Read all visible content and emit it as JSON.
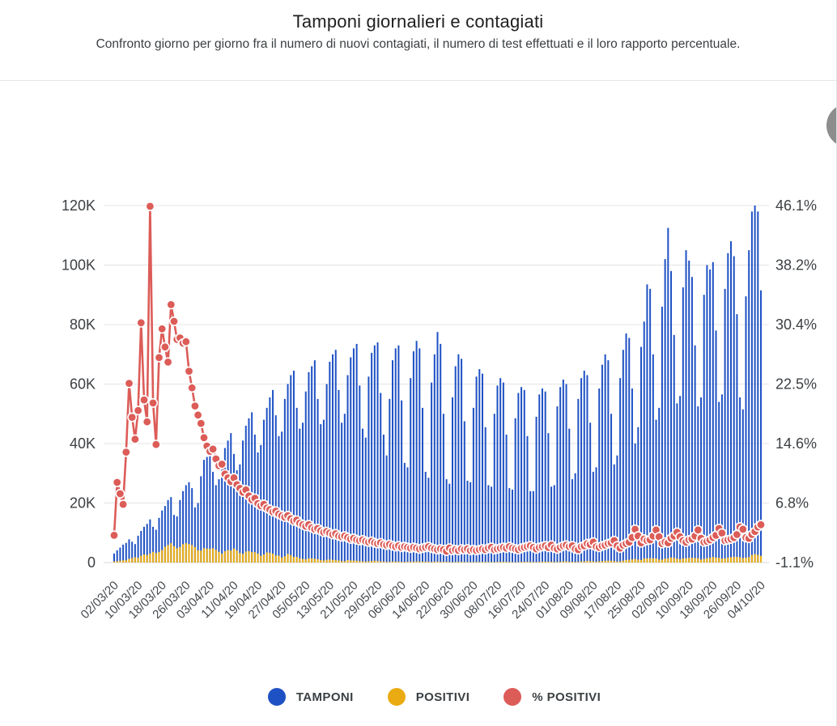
{
  "header": {
    "title": "Tamponi giornalieri e contagiati",
    "subtitle": "Confronto giorno per giorno fra il numero di nuovi contagiati, il numero di test effettuati e il loro rapporto percentuale."
  },
  "chart_data": {
    "type": "combo",
    "x": {
      "start_date": "02/03/20",
      "end_date": "04/10/20",
      "points": 217,
      "tick_every_days": 8,
      "tick_labels": [
        "02/03/20",
        "10/03/20",
        "18/03/20",
        "26/03/20",
        "03/04/20",
        "11/04/20",
        "19/04/20",
        "27/04/20",
        "05/05/20",
        "13/05/20",
        "21/05/20",
        "29/05/20",
        "06/06/20",
        "14/06/20",
        "22/06/20",
        "30/06/20",
        "08/07/20",
        "16/07/20",
        "24/07/20",
        "01/08/20",
        "09/08/20",
        "17/08/20",
        "25/08/20",
        "02/09/20",
        "10/09/20",
        "18/09/20",
        "26/09/20",
        "04/10/20"
      ]
    },
    "left_axis": {
      "min": 0,
      "max": 120000,
      "ticks": [
        "0",
        "20K",
        "40K",
        "60K",
        "80K",
        "100K",
        "120K"
      ]
    },
    "right_axis": {
      "min": -1.1,
      "max": 46.1,
      "ticks": [
        "-1.1%",
        "6.8%",
        "14.6%",
        "22.5%",
        "30.4%",
        "38.2%",
        "46.1%"
      ]
    },
    "grid": true,
    "legend_position": "bottom",
    "series": [
      {
        "name": "TAMPONI",
        "type": "bar",
        "axis": "left",
        "color": "#1e51c4",
        "values": [
          3000,
          4100,
          5000,
          6000,
          6600,
          7800,
          7000,
          6200,
          9000,
          10600,
          12000,
          13000,
          14500,
          12000,
          11000,
          15000,
          17500,
          19000,
          21000,
          22000,
          16000,
          15500,
          21000,
          24000,
          26000,
          27000,
          25000,
          18500,
          20000,
          29000,
          34500,
          35500,
          36000,
          30500,
          26000,
          28000,
          34000,
          38500,
          41000,
          43500,
          36500,
          31000,
          33000,
          41000,
          46000,
          48500,
          50500,
          43000,
          37000,
          39500,
          48000,
          52000,
          55500,
          58000,
          49500,
          42500,
          44000,
          55000,
          60000,
          63000,
          64500,
          52000,
          45000,
          47000,
          57500,
          64000,
          66000,
          68000,
          55000,
          46500,
          48000,
          60000,
          67500,
          70000,
          71500,
          58000,
          47000,
          50000,
          63000,
          69000,
          72000,
          73500,
          59500,
          45000,
          42000,
          62500,
          70500,
          73000,
          74000,
          57000,
          43000,
          36000,
          55000,
          68000,
          72000,
          73000,
          54500,
          33500,
          32000,
          62000,
          71000,
          74500,
          72000,
          52000,
          30500,
          28500,
          60500,
          70000,
          77500,
          73500,
          50000,
          28000,
          26500,
          55500,
          66000,
          70000,
          68500,
          47500,
          27500,
          27000,
          52000,
          62500,
          65000,
          63500,
          45500,
          26000,
          25500,
          50000,
          59500,
          62000,
          60500,
          43000,
          25000,
          24500,
          48500,
          57000,
          59000,
          58000,
          42500,
          24000,
          24000,
          49000,
          56500,
          58500,
          57500,
          43500,
          25500,
          26000,
          52500,
          59000,
          61500,
          60000,
          45000,
          28000,
          30000,
          55000,
          62000,
          64500,
          63000,
          47000,
          30500,
          32000,
          58500,
          66500,
          70000,
          68000,
          50000,
          33000,
          36000,
          62000,
          71500,
          77000,
          75500,
          58500,
          40000,
          45500,
          72500,
          81000,
          93500,
          92000,
          70000,
          48000,
          52000,
          86000,
          102000,
          112500,
          98000,
          76500,
          53500,
          56000,
          92500,
          105000,
          101500,
          96000,
          73000,
          52500,
          55500,
          90000,
          100000,
          98500,
          101000,
          78000,
          54000,
          56500,
          92000,
          104000,
          108000,
          103000,
          83500,
          55500,
          51500,
          89500,
          105000,
          118000,
          120000,
          118000,
          91500
        ]
      },
      {
        "name": "POSITIVI",
        "type": "bar",
        "axis": "left",
        "color": "#e9ab11",
        "values": [
          340,
          470,
          590,
          770,
          780,
          1250,
          1490,
          1800,
          1600,
          2300,
          2700,
          2500,
          3000,
          3600,
          3200,
          3500,
          4200,
          5300,
          5900,
          6500,
          5500,
          4800,
          5200,
          6200,
          6500,
          6200,
          5900,
          5200,
          4100,
          4000,
          4800,
          4700,
          4600,
          4800,
          4300,
          3600,
          3000,
          3800,
          4200,
          4000,
          4700,
          4100,
          3200,
          2900,
          3700,
          3800,
          3500,
          3500,
          3000,
          2300,
          2700,
          3400,
          3300,
          3000,
          2400,
          2300,
          1700,
          2100,
          2900,
          2500,
          1900,
          1900,
          1400,
          1200,
          1100,
          1400,
          1400,
          1300,
          1100,
          800,
          700,
          900,
          1000,
          900,
          800,
          700,
          500,
          450,
          800,
          700,
          650,
          600,
          500,
          400,
          300,
          400,
          500,
          600,
          500,
          400,
          350,
          200,
          300,
          350,
          300,
          300,
          250,
          200,
          280,
          300,
          330,
          400,
          350,
          300,
          300,
          300,
          200,
          330,
          300,
          250,
          250,
          220,
          220,
          110,
          200,
          200,
          250,
          200,
          170,
          130,
          140,
          180,
          200,
          220,
          200,
          190,
          200,
          140,
          190,
          230,
          280,
          240,
          230,
          170,
          110,
          160,
          230,
          230,
          250,
          220,
          190,
          130,
          280,
          310,
          300,
          250,
          270,
          170,
          200,
          290,
          380,
          400,
          300,
          240,
          160,
          190,
          380,
          400,
          550,
          460,
          420,
          260,
          410,
          480,
          570,
          630,
          600,
          500,
          320,
          400,
          640,
          840,
          950,
          1070,
          1210,
          950,
          880,
          1370,
          1410,
          1460,
          1440,
          1370,
          1000,
          980,
          1330,
          1400,
          1700,
          1600,
          1300,
          1100,
          1400,
          1430,
          1600,
          1600,
          1500,
          1460,
          1000,
          1230,
          1450,
          1600,
          1900,
          1640,
          1590,
          1350,
          1390,
          1650,
          1790,
          1910,
          1870,
          1770,
          1490,
          1650,
          1850,
          2550,
          2840,
          2580,
          2260
        ]
      },
      {
        "name": "% POSITIVI",
        "type": "line",
        "axis": "right",
        "color": "#dc5c58",
        "values": [
          2.5,
          9.5,
          8.0,
          6.6,
          13.5,
          22.6,
          18.1,
          15.2,
          19.0,
          30.6,
          20.4,
          17.5,
          46.0,
          20.0,
          14.5,
          26.0,
          29.8,
          27.4,
          25.4,
          33.0,
          30.8,
          28.4,
          28.6,
          27.9,
          28.1,
          24.2,
          22.0,
          19.6,
          18.4,
          17.3,
          15.4,
          14.3,
          13.6,
          13.9,
          12.6,
          11.7,
          11.9,
          10.6,
          10.1,
          9.6,
          10.1,
          9.2,
          8.7,
          8.2,
          8.5,
          7.7,
          7.2,
          7.4,
          6.7,
          6.4,
          6.6,
          6.1,
          5.9,
          5.6,
          5.7,
          5.3,
          5.1,
          4.9,
          5.1,
          4.7,
          4.4,
          4.5,
          4.1,
          3.9,
          3.7,
          3.9,
          3.5,
          3.3,
          3.4,
          3.1,
          2.9,
          3.0,
          2.8,
          2.6,
          2.7,
          2.4,
          2.3,
          2.4,
          2.2,
          2.0,
          2.1,
          1.9,
          1.8,
          1.9,
          1.7,
          1.6,
          1.7,
          1.5,
          1.4,
          1.5,
          1.3,
          1.2,
          1.3,
          1.1,
          1.0,
          1.1,
          0.9,
          1.0,
          0.9,
          0.8,
          0.9,
          0.8,
          0.7,
          0.8,
          0.9,
          1.0,
          0.8,
          0.7,
          0.6,
          0.7,
          0.6,
          0.4,
          0.8,
          0.5,
          0.6,
          0.5,
          0.7,
          0.6,
          0.7,
          0.5,
          0.6,
          0.5,
          0.6,
          0.7,
          0.6,
          0.8,
          0.9,
          0.6,
          0.7,
          0.8,
          0.9,
          0.8,
          1.0,
          0.8,
          0.7,
          0.6,
          0.8,
          0.9,
          1.0,
          1.1,
          0.9,
          0.7,
          0.9,
          1.0,
          1.1,
          0.9,
          1.2,
          0.8,
          0.7,
          0.9,
          1.1,
          1.2,
          1.0,
          1.1,
          0.7,
          0.6,
          1.0,
          1.1,
          1.4,
          1.3,
          1.6,
          1.0,
          0.9,
          1.1,
          1.2,
          1.4,
          1.5,
          1.8,
          1.1,
          0.8,
          1.2,
          1.4,
          1.6,
          2.2,
          3.3,
          2.4,
          1.5,
          2.0,
          1.8,
          1.9,
          2.4,
          3.2,
          2.3,
          1.4,
          1.6,
          1.5,
          2.1,
          2.4,
          2.9,
          2.3,
          1.8,
          1.6,
          1.9,
          2.0,
          2.4,
          3.2,
          2.1,
          1.6,
          1.7,
          1.9,
          2.2,
          2.5,
          3.4,
          2.8,
          1.8,
          1.9,
          2.0,
          2.2,
          2.6,
          3.6,
          3.3,
          2.2,
          2.1,
          2.6,
          3.0,
          3.6,
          3.9
        ]
      }
    ],
    "legend": [
      {
        "label": "TAMPONI",
        "color": "#1e51c4"
      },
      {
        "label": "POSITIVI",
        "color": "#e9ab11"
      },
      {
        "label": "% POSITIVI",
        "color": "#dc5c58"
      }
    ]
  }
}
